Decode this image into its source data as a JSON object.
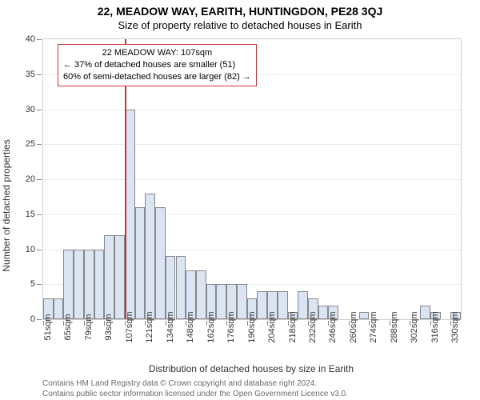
{
  "title": "22, MEADOW WAY, EARITH, HUNTINGDON, PE28 3QJ",
  "subtitle": "Size of property relative to detached houses in Earith",
  "y_axis": {
    "label": "Number of detached properties",
    "min": 0,
    "max": 40,
    "tick_step": 5,
    "label_fontsize": 12,
    "tick_fontsize": 11
  },
  "x_axis": {
    "label": "Distribution of detached houses by size in Earith",
    "labeled_categories": [
      "51sqm",
      "65sqm",
      "79sqm",
      "93sqm",
      "107sqm",
      "121sqm",
      "134sqm",
      "148sqm",
      "162sqm",
      "176sqm",
      "190sqm",
      "204sqm",
      "218sqm",
      "232sqm",
      "246sqm",
      "260sqm",
      "274sqm",
      "288sqm",
      "302sqm",
      "316sqm",
      "330sqm"
    ],
    "label_fontsize": 12,
    "tick_fontsize": 11
  },
  "chart": {
    "type": "histogram",
    "bar_fill": "#dbe4f3",
    "bar_border": "#888888",
    "grid_color": "#ececec",
    "plot_border_color": "#d0d0d0",
    "background_color": "#ffffff",
    "values": [
      3,
      3,
      10,
      10,
      10,
      10,
      12,
      12,
      30,
      16,
      18,
      16,
      9,
      9,
      7,
      7,
      5,
      5,
      5,
      5,
      3,
      4,
      4,
      4,
      1,
      4,
      3,
      2,
      2,
      0,
      0,
      1,
      0,
      0,
      0,
      0,
      0,
      2,
      1,
      0,
      1
    ]
  },
  "marker": {
    "color": "#cc3333",
    "position_index": 8
  },
  "annotation": {
    "title": "22 MEADOW WAY: 107sqm",
    "line1": "← 37% of detached houses are smaller (51)",
    "line2": "60% of semi-detached houses are larger (82) →",
    "border_color": "#cc3333",
    "background_color": "#ffffff",
    "fontsize": 11
  },
  "footer": {
    "line1": "Contains HM Land Registry data © Crown copyright and database right 2024.",
    "line2": "Contains public sector information licensed under the Open Government Licence v3.0.",
    "color": "#6a6a6a",
    "fontsize": 10
  }
}
